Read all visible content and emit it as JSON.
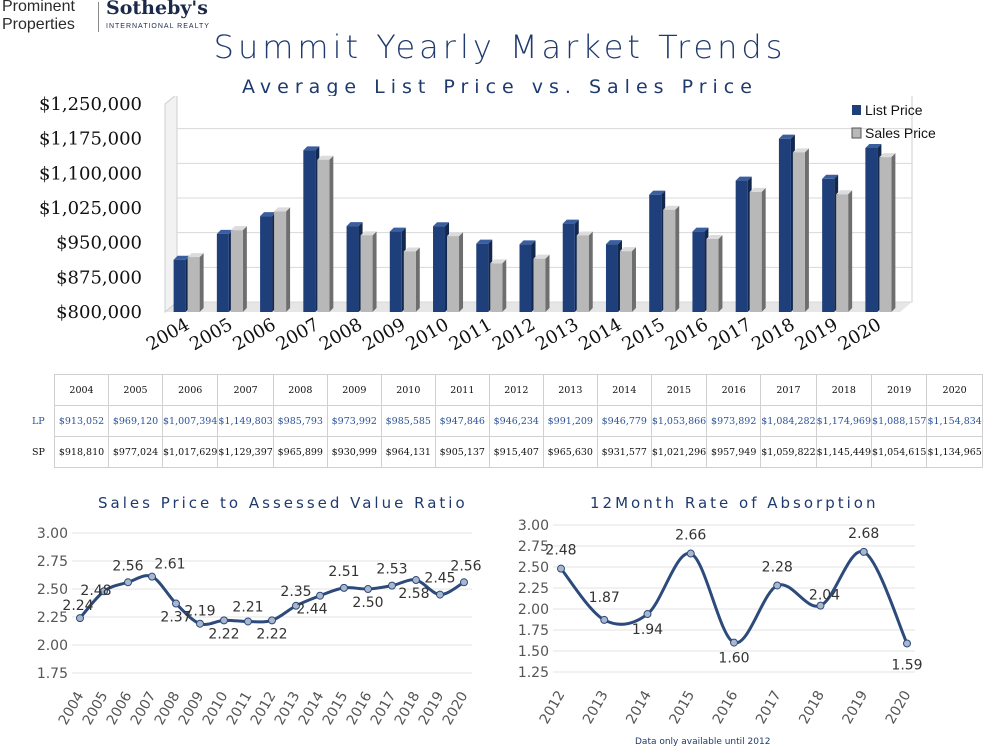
{
  "logo": {
    "line1": "Prominent",
    "line2": "Properties",
    "brand": "Sotheby's",
    "sub": "INTERNATIONAL REALTY"
  },
  "title": "Summit Yearly Market Trends",
  "subtitle": "Average List Price vs. Sales Price",
  "colors": {
    "list": "#1f3f7a",
    "sales": "#b8b8b8",
    "line": "#2c4a7c",
    "point": "#a9b6cc"
  },
  "chart_data": [
    {
      "type": "bar",
      "title": "Average List Price vs. Sales Price",
      "categories": [
        "2004",
        "2005",
        "2006",
        "2007",
        "2008",
        "2009",
        "2010",
        "2011",
        "2012",
        "2013",
        "2014",
        "2015",
        "2016",
        "2017",
        "2018",
        "2019",
        "2020"
      ],
      "series": [
        {
          "name": "List Price",
          "values": [
            913052,
            969120,
            1007394,
            1149803,
            985793,
            973992,
            985585,
            947846,
            946234,
            991209,
            946779,
            1053866,
            973892,
            1084282,
            1174969,
            1088157,
            1154834
          ]
        },
        {
          "name": "Sales Price",
          "values": [
            918810,
            977024,
            1017629,
            1129397,
            965899,
            930999,
            964131,
            905137,
            915407,
            965630,
            931577,
            1021296,
            957949,
            1059822,
            1145449,
            1054615,
            1134965
          ]
        }
      ],
      "yticks": [
        "$800,000",
        "$875,000",
        "$950,000",
        "$1,025,000",
        "$1,100,000",
        "$1,175,000",
        "$1,250,000"
      ],
      "ylim": [
        800000,
        1250000
      ],
      "legend": "top-right",
      "grid": true
    },
    {
      "type": "line",
      "title": "Sales Price to Assessed Value Ratio",
      "x": [
        "2004",
        "2005",
        "2006",
        "2007",
        "2008",
        "2009",
        "2010",
        "2011",
        "2012",
        "2013",
        "2014",
        "2015",
        "2016",
        "2017",
        "2018",
        "2019",
        "2020"
      ],
      "values": [
        2.24,
        2.48,
        2.56,
        2.61,
        2.37,
        2.19,
        2.22,
        2.21,
        2.22,
        2.35,
        2.44,
        2.51,
        2.5,
        2.53,
        2.58,
        2.45,
        2.56
      ],
      "yticks": [
        "1.75",
        "2.00",
        "2.25",
        "2.50",
        "2.75",
        "3.00"
      ],
      "ylim": [
        1.75,
        3.0
      ],
      "grid": true
    },
    {
      "type": "line",
      "title": "12Month Rate of Absorption",
      "x": [
        "2012",
        "2013",
        "2014",
        "2015",
        "2016",
        "2017",
        "2018",
        "2019",
        "2020"
      ],
      "values": [
        2.48,
        1.87,
        1.94,
        2.66,
        1.6,
        2.28,
        2.04,
        2.68,
        1.59
      ],
      "yticks": [
        "1.25",
        "1.50",
        "1.75",
        "2.00",
        "2.25",
        "2.50",
        "2.75",
        "3.00"
      ],
      "ylim": [
        1.25,
        3.0
      ],
      "grid": true
    }
  ],
  "table": {
    "row_labels": [
      "LP",
      "SP"
    ],
    "lp": [
      "$913,052",
      "$969,120",
      "$1,007,394",
      "$1,149,803",
      "$985,793",
      "$973,992",
      "$985,585",
      "$947,846",
      "$946,234",
      "$991,209",
      "$946,779",
      "$1,053,866",
      "$973,892",
      "$1,084,282",
      "$1,174,969",
      "$1,088,157",
      "$1,154,834"
    ],
    "sp": [
      "$918,810",
      "$977,024",
      "$1,017,629",
      "$1,129,397",
      "$965,899",
      "$930,999",
      "$964,131",
      "$905,137",
      "$915,407",
      "$965,630",
      "$931,577",
      "$1,021,296",
      "$957,949",
      "$1,059,822",
      "$1,145,449",
      "$1,054,615",
      "$1,134,965"
    ]
  },
  "ratio_title": "Sales Price to Assessed Value Ratio",
  "absorption_title": "12Month Rate of Absorption",
  "note": "Data only available until 2012"
}
